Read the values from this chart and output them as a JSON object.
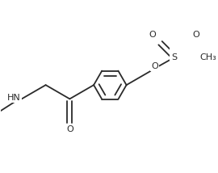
{
  "bg": "#ffffff",
  "lc": "#2a2a2a",
  "lw": 1.3,
  "fs": 8.0,
  "ring_r": 0.165,
  "xlim": [
    -0.72,
    0.98
  ],
  "ylim": [
    -0.55,
    0.72
  ]
}
